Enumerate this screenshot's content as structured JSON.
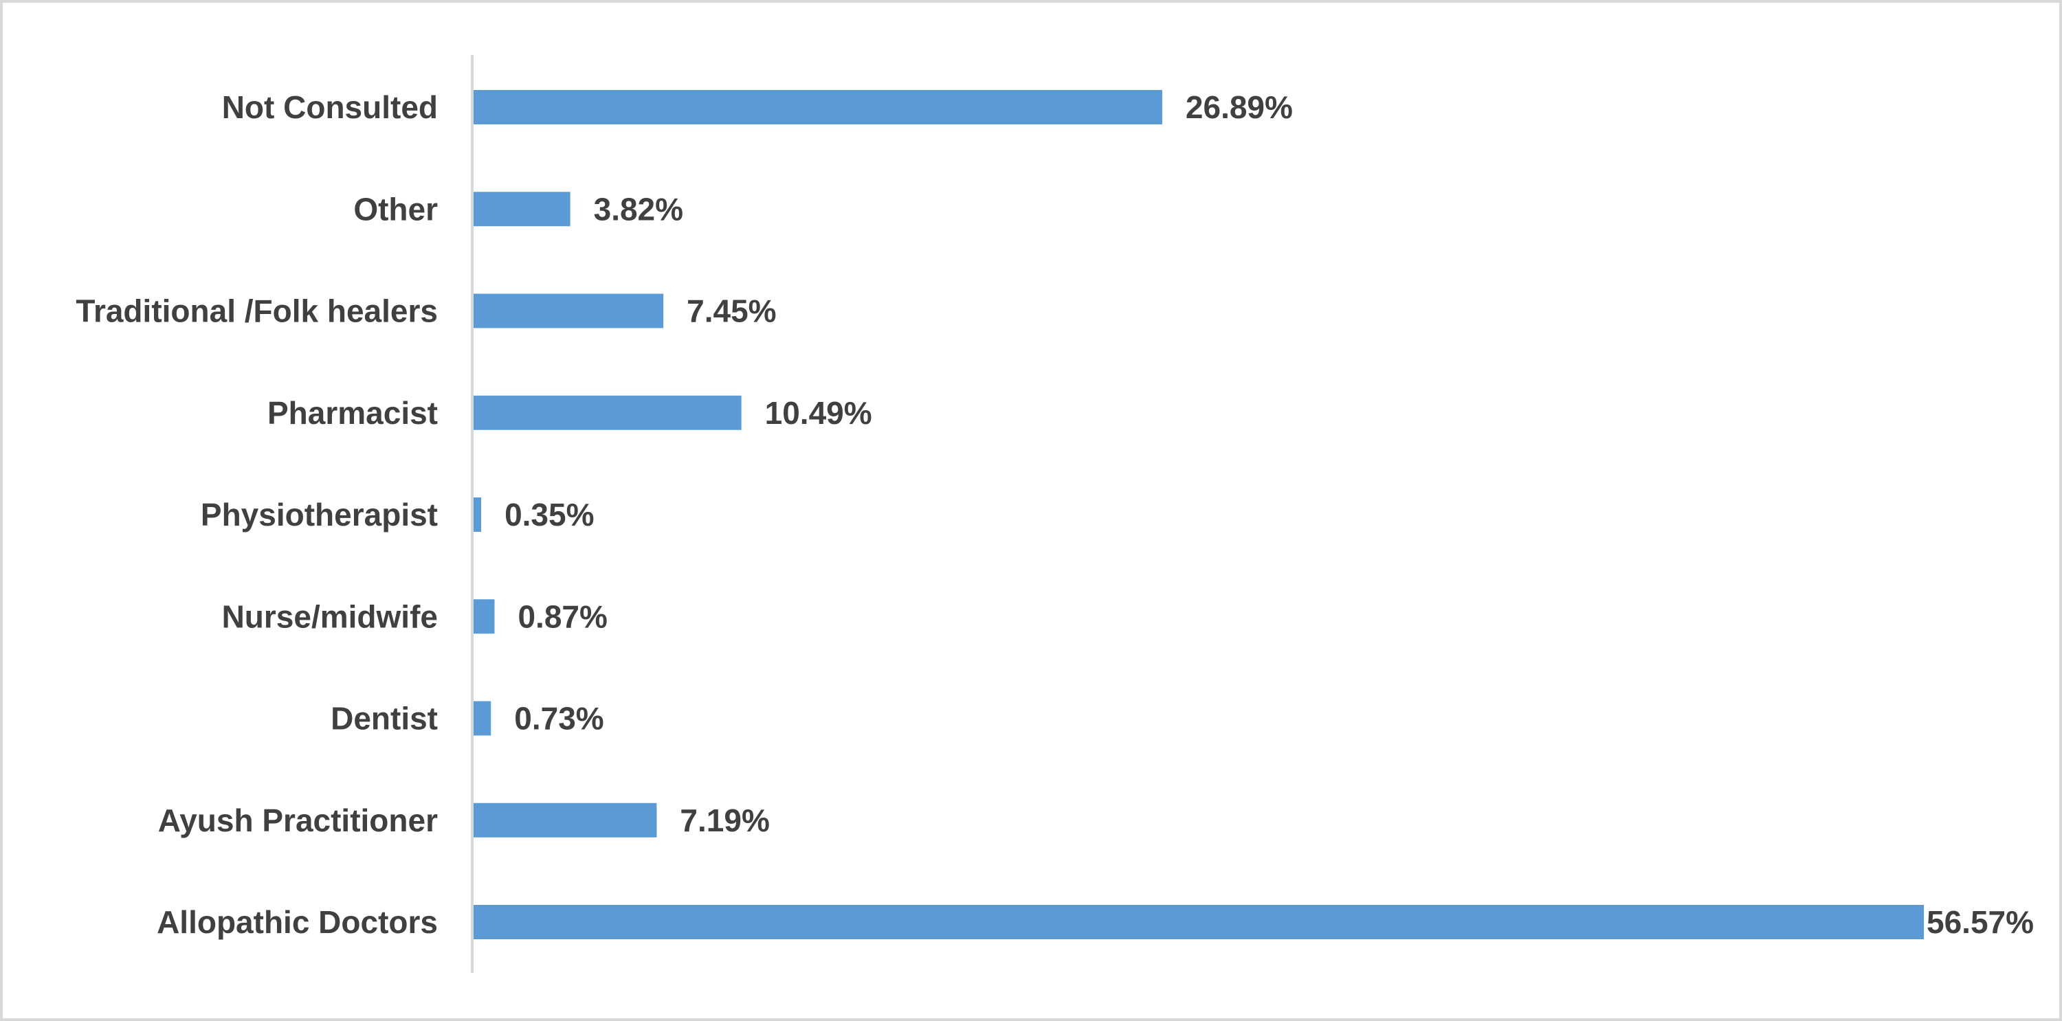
{
  "chart_data": {
    "type": "bar",
    "orientation": "horizontal",
    "title": "",
    "xlabel": "",
    "ylabel": "",
    "categories": [
      "Not Consulted",
      "Other",
      "Traditional /Folk healers",
      "Pharmacist",
      "Physiotherapist",
      "Nurse/midwife",
      "Dentist",
      "Ayush Practitioner",
      "Allopathic Doctors"
    ],
    "values": [
      26.89,
      3.82,
      7.45,
      10.49,
      0.35,
      0.87,
      0.73,
      7.19,
      56.57
    ],
    "value_labels": [
      "26.89%",
      "3.82%",
      "7.45%",
      "10.49%",
      "0.35%",
      "0.87%",
      "0.73%",
      "7.19%",
      "56.57%"
    ],
    "xlim": [
      0,
      56.57
    ],
    "grid": false,
    "legend": "none",
    "bar_color": "#5b9bd5",
    "axis_color": "#d9d9d9",
    "text_color": "#404040"
  }
}
